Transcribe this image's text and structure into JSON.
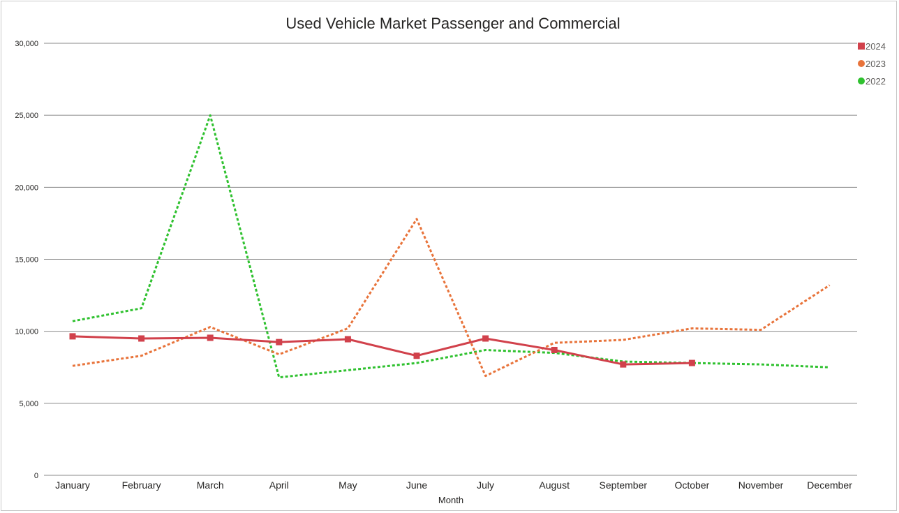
{
  "chart_data": {
    "type": "line",
    "title": "Used Vehicle Market Passenger and Commercial",
    "xlabel": "Month",
    "ylabel": "",
    "ylim": [
      0,
      30000
    ],
    "yticks": [
      0,
      5000,
      10000,
      15000,
      20000,
      25000,
      30000
    ],
    "ytick_labels": [
      "0",
      "5,000",
      "10,000",
      "15,000",
      "20,000",
      "25,000",
      "30,000"
    ],
    "grid": true,
    "legend_position": "top-right",
    "categories": [
      "January",
      "February",
      "March",
      "April",
      "May",
      "June",
      "July",
      "August",
      "September",
      "October",
      "November",
      "December"
    ],
    "series": [
      {
        "name": "2024",
        "color": "#d1414b",
        "style": "solid",
        "marker": "square",
        "values": [
          9650,
          9500,
          9550,
          9250,
          9450,
          8300,
          9500,
          8700,
          7700,
          7800,
          null,
          null
        ]
      },
      {
        "name": "2023",
        "color": "#e8733a",
        "style": "dotted",
        "marker": "circle",
        "values": [
          7600,
          8300,
          10300,
          8400,
          10200,
          17800,
          6900,
          9200,
          9400,
          10200,
          10100,
          13200
        ]
      },
      {
        "name": "2022",
        "color": "#2fc12f",
        "style": "dotted",
        "marker": "circle",
        "values": [
          10700,
          11600,
          25000,
          6800,
          7300,
          7800,
          8700,
          8500,
          7900,
          7800,
          7700,
          7500
        ]
      }
    ]
  }
}
